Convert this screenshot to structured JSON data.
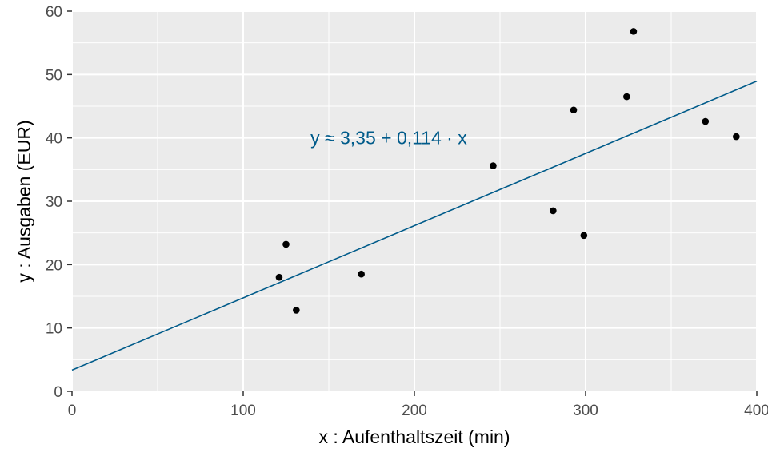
{
  "chart_data": {
    "type": "scatter",
    "title": "",
    "xlabel": "x : Aufenthaltszeit (min)",
    "ylabel": "y : Ausgaben (EUR)",
    "xlim": [
      0,
      400
    ],
    "ylim": [
      0,
      60
    ],
    "x_ticks": [
      0,
      100,
      200,
      300,
      400
    ],
    "x_tick_labels": [
      "0",
      "100",
      "200",
      "300",
      "400"
    ],
    "y_ticks": [
      0,
      10,
      20,
      30,
      40,
      50,
      60
    ],
    "y_tick_labels": [
      "0",
      "10",
      "20",
      "30",
      "40",
      "50",
      "60"
    ],
    "grid": true,
    "background_color": "#ebebeb",
    "grid_color": "#ffffff",
    "point_color": "#000000",
    "series": [
      {
        "points": [
          {
            "x": 121,
            "y": 18.0
          },
          {
            "x": 125,
            "y": 23.2
          },
          {
            "x": 131,
            "y": 12.8
          },
          {
            "x": 169,
            "y": 18.5
          },
          {
            "x": 246,
            "y": 35.6
          },
          {
            "x": 281,
            "y": 28.5
          },
          {
            "x": 293,
            "y": 44.4
          },
          {
            "x": 299,
            "y": 24.6
          },
          {
            "x": 324,
            "y": 46.5
          },
          {
            "x": 328,
            "y": 56.8
          },
          {
            "x": 370,
            "y": 42.6
          },
          {
            "x": 388,
            "y": 40.2
          }
        ]
      }
    ],
    "regression_line": {
      "intercept": 3.35,
      "slope": 0.114,
      "color": "#005b8a"
    },
    "annotation": {
      "text": "y ≈ 3,35 + 0,114 · x",
      "x": 185,
      "y": 40,
      "color": "#005b8a"
    }
  }
}
